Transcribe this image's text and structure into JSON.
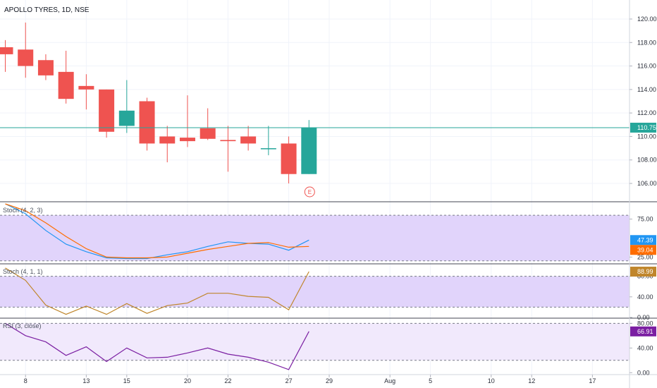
{
  "chart_data": [
    {
      "type": "candlestick",
      "title": "APOLLO TYRES, 1D, NSE",
      "last_price_label": "110.75",
      "ylim": [
        104.5,
        121.5
      ],
      "y_ticks": [
        106,
        108,
        110,
        112,
        114,
        116,
        118,
        120
      ],
      "y_tick_labels": [
        "106.00",
        "108.00",
        "110.00",
        "112.00",
        "114.00",
        "116.00",
        "118.00",
        "120.00"
      ],
      "event_marker": "E",
      "candles": [
        {
          "d": 0,
          "o": 117.6,
          "h": 118.2,
          "l": 115.5,
          "c": 117.0
        },
        {
          "d": 1,
          "o": 117.4,
          "h": 119.7,
          "l": 115.0,
          "c": 116.0
        },
        {
          "d": 2,
          "o": 116.5,
          "h": 117.0,
          "l": 114.8,
          "c": 115.2
        },
        {
          "d": 3,
          "o": 115.5,
          "h": 117.3,
          "l": 112.8,
          "c": 113.2
        },
        {
          "d": 4,
          "o": 114.3,
          "h": 115.3,
          "l": 112.3,
          "c": 114.0
        },
        {
          "d": 5,
          "o": 114.0,
          "h": 114.0,
          "l": 109.9,
          "c": 110.4
        },
        {
          "d": 6,
          "o": 110.9,
          "h": 114.8,
          "l": 110.3,
          "c": 112.2
        },
        {
          "d": 7,
          "o": 113.0,
          "h": 113.3,
          "l": 108.8,
          "c": 109.4
        },
        {
          "d": 8,
          "o": 110.0,
          "h": 110.9,
          "l": 107.8,
          "c": 109.4
        },
        {
          "d": 9,
          "o": 109.9,
          "h": 113.5,
          "l": 109.1,
          "c": 109.6
        },
        {
          "d": 10,
          "o": 110.7,
          "h": 112.4,
          "l": 109.7,
          "c": 109.8
        },
        {
          "d": 11,
          "o": 109.7,
          "h": 110.9,
          "l": 107.0,
          "c": 109.6
        },
        {
          "d": 12,
          "o": 110.0,
          "h": 110.9,
          "l": 108.8,
          "c": 109.4
        },
        {
          "d": 13,
          "o": 109.0,
          "h": 110.9,
          "l": 108.4,
          "c": 109.0
        },
        {
          "d": 14,
          "o": 109.4,
          "h": 110.0,
          "l": 106.0,
          "c": 106.8
        },
        {
          "d": 15,
          "o": 106.8,
          "h": 111.4,
          "l": 106.8,
          "c": 110.75
        }
      ]
    },
    {
      "type": "line",
      "title": "Stoch (4, 2, 3)",
      "ylim": [
        17,
        95
      ],
      "y_ticks": [
        25,
        75
      ],
      "y_tick_labels": [
        "25.00",
        "75.00"
      ],
      "band": [
        20,
        80
      ],
      "x": [
        0,
        1,
        2,
        3,
        4,
        5,
        6,
        7,
        8,
        9,
        10,
        11,
        12,
        13,
        14,
        15
      ],
      "series": [
        {
          "color": "#2196f3",
          "last_label": "47.39",
          "values": [
            95,
            82,
            60,
            42,
            32,
            24,
            23,
            23,
            28,
            32,
            39,
            45,
            43,
            42,
            34,
            47.39
          ]
        },
        {
          "color": "#ff6d00",
          "last_label": "39.04",
          "values": [
            95,
            86,
            70,
            52,
            36,
            25,
            24,
            24,
            25,
            30,
            35,
            39,
            43,
            44,
            38,
            39.04
          ]
        }
      ]
    },
    {
      "type": "line",
      "title": "Stoch (4, 1, 1)",
      "ylim": [
        0,
        100
      ],
      "y_ticks": [
        0,
        40,
        80
      ],
      "y_tick_labels": [
        "0.00",
        "40.00",
        "80.00"
      ],
      "band": [
        20,
        80
      ],
      "x": [
        0,
        1,
        2,
        3,
        4,
        5,
        6,
        7,
        8,
        9,
        10,
        11,
        12,
        13,
        14,
        15
      ],
      "series": [
        {
          "color": "#c0862c",
          "last_label": "88.99",
          "values": [
            96,
            72,
            24,
            6,
            22,
            6,
            27,
            8,
            23,
            28,
            47,
            47,
            41,
            39,
            15,
            88.99
          ]
        }
      ]
    },
    {
      "type": "line",
      "title": "RSI (3, close)",
      "ylim": [
        -2,
        85
      ],
      "y_ticks": [
        0,
        40,
        80
      ],
      "y_tick_labels": [
        "0.00",
        "40.00",
        "80.00"
      ],
      "band": [
        20,
        80
      ],
      "x": [
        0,
        1,
        2,
        3,
        4,
        5,
        6,
        7,
        8,
        9,
        10,
        11,
        12,
        13,
        14,
        15
      ],
      "series": [
        {
          "color": "#7b1fa2",
          "last_label": "66.91",
          "values": [
            80,
            60,
            50,
            28,
            42,
            18,
            40,
            24,
            25,
            32,
            40,
            30,
            25,
            17,
            5,
            66.91
          ]
        }
      ]
    }
  ],
  "x_axis": {
    "labels": [
      {
        "text": "8",
        "day": 1
      },
      {
        "text": "13",
        "day": 4
      },
      {
        "text": "15",
        "day": 6
      },
      {
        "text": "20",
        "day": 9
      },
      {
        "text": "22",
        "day": 11
      },
      {
        "text": "27",
        "day": 14
      },
      {
        "text": "29",
        "day": 16
      },
      {
        "text": "Aug",
        "day": 19
      },
      {
        "text": "5",
        "day": 21
      },
      {
        "text": "10",
        "day": 24
      },
      {
        "text": "12",
        "day": 26
      },
      {
        "text": "17",
        "day": 29
      }
    ]
  },
  "colors": {
    "up": "#26a69a",
    "down": "#ef5350",
    "grid": "#f0f3fa",
    "band": "#e1d4fb",
    "rsi_band": "#f1e9fc",
    "axis_text": "#2a2e39",
    "last_price_line": "#26a69a"
  }
}
